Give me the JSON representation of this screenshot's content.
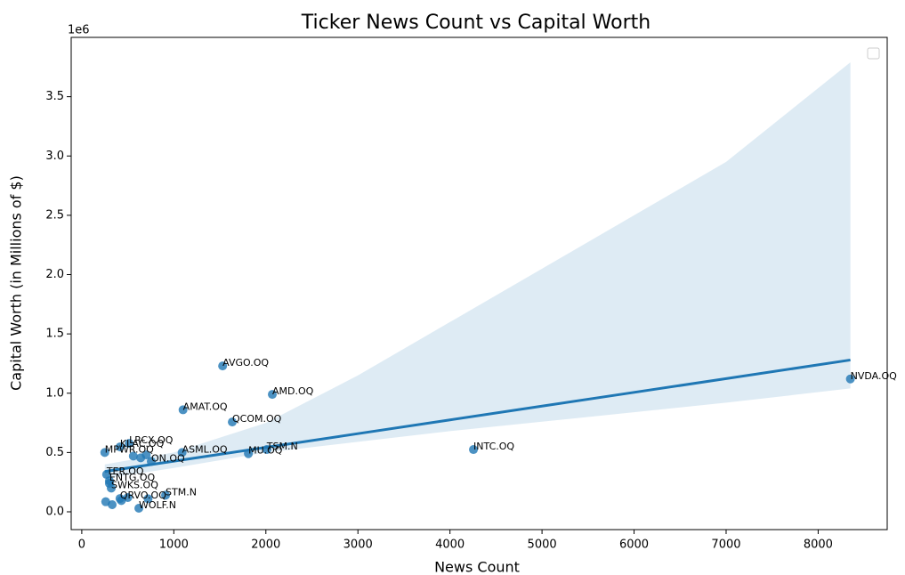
{
  "chart_data": {
    "type": "scatter",
    "title": "Ticker News Count vs Capital Worth",
    "xlabel": "News Count",
    "ylabel": "Capital Worth (in Millions of $)",
    "y_offset_text": "1e6",
    "color": "#1f77b4",
    "x": [
      8350,
      4255,
      1530,
      2070,
      1100,
      1635,
      2010,
      1810,
      1090,
      515,
      415,
      250,
      755,
      270,
      300,
      320,
      415,
      910,
      620,
      560,
      700,
      640,
      260,
      330,
      430,
      500,
      720,
      300
    ],
    "values": [
      1120000,
      525000,
      1230000,
      990000,
      860000,
      757000,
      525000,
      490000,
      500000,
      577000,
      547000,
      500000,
      425000,
      315000,
      262000,
      200000,
      112000,
      140000,
      30000,
      470000,
      480000,
      455000,
      85000,
      60000,
      95000,
      120000,
      110000,
      240000
    ],
    "labels": [
      "NVDA.OQ",
      "INTC.OQ",
      "AVGO.OQ",
      "AMD.OQ",
      "AMAT.OQ",
      "QCOM.OQ",
      "TSM.N",
      "MU.OQ",
      "ASML.OQ",
      "LRCX.OQ",
      "KLAC.OQ",
      "MPWR.OQ",
      "ON.OQ",
      "TER.OQ",
      "ENTG.OQ",
      "SWKS.OQ",
      "QRVO.OQ",
      "STM.N",
      "WOLF.N",
      null,
      null,
      null,
      null,
      null,
      null,
      null,
      null,
      null
    ],
    "trend": {
      "x": [
        250,
        1000,
        2000,
        3000,
        4000,
        5000,
        6000,
        7000,
        8350
      ],
      "values": [
        340000,
        427000,
        543000,
        659000,
        775000,
        891000,
        1007000,
        1123000,
        1280000
      ],
      "upper": [
        400000,
        500000,
        750000,
        1150000,
        1600000,
        2050000,
        2500000,
        2950000,
        3790000
      ],
      "lower": [
        280000,
        370000,
        500000,
        590000,
        680000,
        760000,
        840000,
        920000,
        1040000
      ]
    },
    "xlim": [
      -115,
      8750
    ],
    "ylim": [
      -150000,
      4000000
    ],
    "xticks": [
      0,
      1000,
      2000,
      3000,
      4000,
      5000,
      6000,
      7000,
      8000
    ],
    "yticks": [
      {
        "value": 0,
        "label": "0.0"
      },
      {
        "value": 500000,
        "label": "0.5"
      },
      {
        "value": 1000000,
        "label": "1.0"
      },
      {
        "value": 1500000,
        "label": "1.5"
      },
      {
        "value": 2000000,
        "label": "2.0"
      },
      {
        "value": 2500000,
        "label": "2.5"
      },
      {
        "value": 3000000,
        "label": "3.0"
      },
      {
        "value": 3500000,
        "label": "3.5"
      }
    ],
    "grid": false
  }
}
